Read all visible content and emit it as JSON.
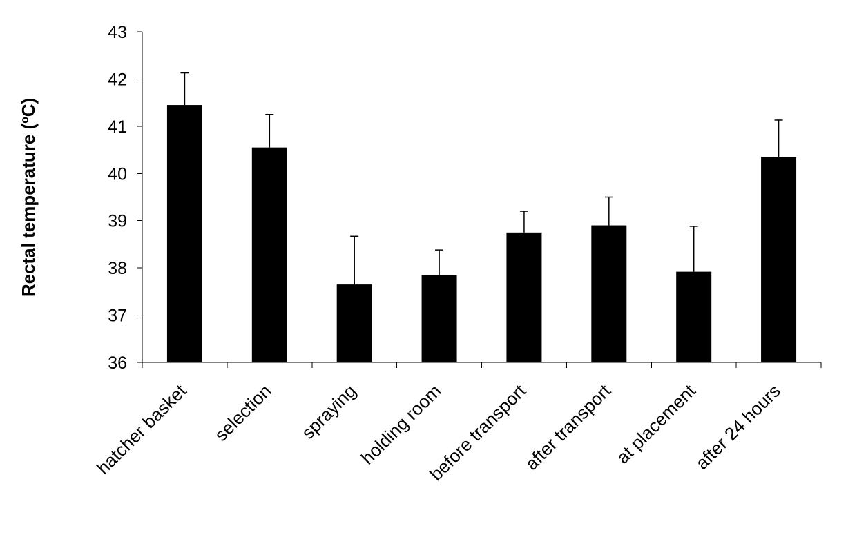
{
  "chart_data": {
    "type": "bar",
    "title": "",
    "xlabel": "",
    "ylabel": "Rectal temperature (ºC)",
    "ylim": [
      36,
      43
    ],
    "yticks": [
      "36",
      "37",
      "38",
      "39",
      "40",
      "41",
      "42",
      "43"
    ],
    "categories": [
      "hatcher basket",
      "selection",
      "spraying",
      "holding room",
      "before transport",
      "after transport",
      "at placement",
      "after 24 hours"
    ],
    "values": [
      41.45,
      40.55,
      37.65,
      37.85,
      38.75,
      38.9,
      37.92,
      40.35
    ],
    "error_upper": [
      0.68,
      0.7,
      1.02,
      0.53,
      0.45,
      0.6,
      0.96,
      0.78
    ],
    "grid": false,
    "legend": "none",
    "bar_color": "#000000"
  }
}
